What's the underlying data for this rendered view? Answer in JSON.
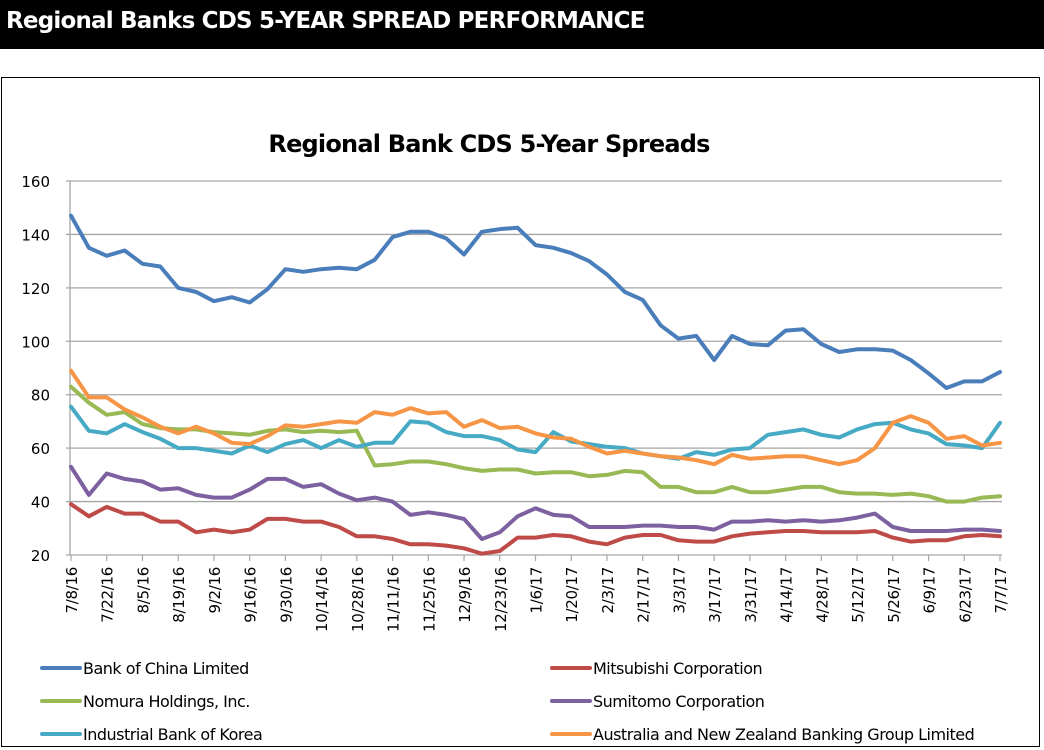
{
  "page": {
    "banner_title": "Regional Banks CDS 5-YEAR SPREAD PERFORMANCE"
  },
  "chart_data": {
    "type": "line",
    "title": "Regional Bank CDS 5-Year Spreads",
    "xlabel": "",
    "ylabel": "",
    "ylim": [
      20,
      160
    ],
    "yticks": [
      20,
      40,
      60,
      80,
      100,
      120,
      140,
      160
    ],
    "grid": true,
    "legend_position": "bottom",
    "x": [
      "7/8/16",
      "7/15/16",
      "7/22/16",
      "7/29/16",
      "8/5/16",
      "8/12/16",
      "8/19/16",
      "8/26/16",
      "9/2/16",
      "9/9/16",
      "9/16/16",
      "9/23/16",
      "9/30/16",
      "10/7/16",
      "10/14/16",
      "10/21/16",
      "10/28/16",
      "11/4/16",
      "11/11/16",
      "11/18/16",
      "11/25/16",
      "12/2/16",
      "12/9/16",
      "12/16/16",
      "12/23/16",
      "12/30/16",
      "1/6/17",
      "1/13/17",
      "1/20/17",
      "1/27/17",
      "2/3/17",
      "2/10/17",
      "2/17/17",
      "2/24/17",
      "3/3/17",
      "3/10/17",
      "3/17/17",
      "3/24/17",
      "3/31/17",
      "4/7/17",
      "4/14/17",
      "4/21/17",
      "4/28/17",
      "5/5/17",
      "5/12/17",
      "5/19/17",
      "5/26/17",
      "6/2/17",
      "6/9/17",
      "6/16/17",
      "6/23/17",
      "6/30/17",
      "7/7/17"
    ],
    "x_tick_labels": [
      "7/8/16",
      "7/22/16",
      "8/5/16",
      "8/19/16",
      "9/2/16",
      "9/16/16",
      "9/30/16",
      "10/14/16",
      "10/28/16",
      "11/11/16",
      "11/25/16",
      "12/9/16",
      "12/23/16",
      "1/6/17",
      "1/20/17",
      "2/3/17",
      "2/17/17",
      "3/3/17",
      "3/17/17",
      "3/31/17",
      "4/14/17",
      "4/28/17",
      "5/12/17",
      "5/26/17",
      "6/9/17",
      "6/23/17",
      "7/7/17"
    ],
    "series": [
      {
        "name": "Bank of China Limited",
        "color": "#4A7EBB",
        "values": [
          147,
          135,
          132,
          134,
          129,
          128,
          120,
          118.5,
          115,
          116.5,
          114.5,
          119.5,
          127,
          126,
          127,
          127.5,
          127,
          130.5,
          139,
          141,
          141,
          138.5,
          132.5,
          141,
          142,
          142.5,
          136,
          135,
          133,
          130,
          125,
          118.5,
          115.5,
          106,
          101,
          102,
          93,
          102,
          99,
          98.5,
          104,
          104.5,
          99,
          96,
          97,
          97,
          96.5,
          93,
          88,
          82.5,
          85,
          85,
          88.5
        ]
      },
      {
        "name": "Mitsubishi Corporation",
        "color": "#BE4B48",
        "values": [
          39,
          34.5,
          38,
          35.5,
          35.5,
          32.5,
          32.5,
          28.5,
          29.5,
          28.5,
          29.5,
          33.5,
          33.5,
          32.5,
          32.5,
          30.5,
          27,
          27,
          26,
          24,
          24,
          23.5,
          22.5,
          20.5,
          21.5,
          26.5,
          26.5,
          27.5,
          27,
          25,
          24,
          26.5,
          27.5,
          27.5,
          25.5,
          25,
          25,
          27,
          28,
          28.5,
          29,
          29,
          28.5,
          28.5,
          28.5,
          29,
          26.5,
          25,
          25.5,
          25.5,
          27,
          27.5,
          27
        ]
      },
      {
        "name": "Nomura Holdings, Inc.",
        "color": "#98B954",
        "values": [
          83,
          77,
          72.5,
          73.5,
          69,
          67.5,
          67,
          67,
          66,
          65.5,
          65,
          66.5,
          67,
          66,
          66.5,
          66,
          66.5,
          53.5,
          54,
          55,
          55,
          54,
          52.5,
          51.5,
          52,
          52,
          50.5,
          51,
          51,
          49.5,
          50,
          51.5,
          51,
          45.5,
          45.5,
          43.5,
          43.5,
          45.5,
          43.5,
          43.5,
          44.5,
          45.5,
          45.5,
          43.5,
          43,
          43,
          42.5,
          43,
          42,
          40,
          40,
          41.5,
          42
        ]
      },
      {
        "name": "Sumitomo Corporation",
        "color": "#7D60A0",
        "values": [
          53,
          42.5,
          50.5,
          48.5,
          47.5,
          44.5,
          45,
          42.5,
          41.5,
          41.5,
          44.5,
          48.5,
          48.5,
          45.5,
          46.5,
          43,
          40.5,
          41.5,
          40,
          35,
          36,
          35,
          33.5,
          26,
          28.5,
          34.5,
          37.5,
          35,
          34.5,
          30.5,
          30.5,
          30.5,
          31,
          31,
          30.5,
          30.5,
          29.5,
          32.5,
          32.5,
          33,
          32.5,
          33,
          32.5,
          33,
          34,
          35.5,
          30.5,
          29,
          29,
          29,
          29.5,
          29.5,
          29
        ]
      },
      {
        "name": "Industrial Bank of Korea",
        "color": "#46AAC5",
        "values": [
          75.5,
          66.5,
          65.5,
          69,
          66,
          63.5,
          60,
          60,
          59,
          58,
          61,
          58.5,
          61.5,
          63,
          60,
          63,
          60.5,
          62,
          62,
          70,
          69.5,
          66,
          64.5,
          64.5,
          63,
          59.5,
          58.5,
          66,
          62.5,
          61.5,
          60.5,
          60,
          58,
          57,
          56,
          58.5,
          57.5,
          59.5,
          60,
          65,
          66,
          67,
          65,
          64,
          67,
          69,
          69.5,
          67,
          65.5,
          61.5,
          61,
          60,
          69.5
        ]
      },
      {
        "name": "Australia and New Zealand Banking Group Limited",
        "color": "#F69545",
        "values": [
          89,
          79,
          79,
          74.5,
          71.5,
          68,
          65.5,
          68,
          65.5,
          62,
          61.5,
          64.5,
          68.5,
          68,
          69,
          70,
          69.5,
          73.5,
          72.5,
          75,
          73,
          73.5,
          68,
          70.5,
          67.5,
          68,
          65.5,
          64,
          63.5,
          60.5,
          58,
          59,
          58,
          57,
          56.5,
          55.5,
          54,
          57.5,
          56,
          56.5,
          57,
          57,
          55.5,
          54,
          55.5,
          60,
          69.5,
          72,
          69.5,
          63.5,
          64.5,
          61,
          62
        ]
      }
    ]
  }
}
